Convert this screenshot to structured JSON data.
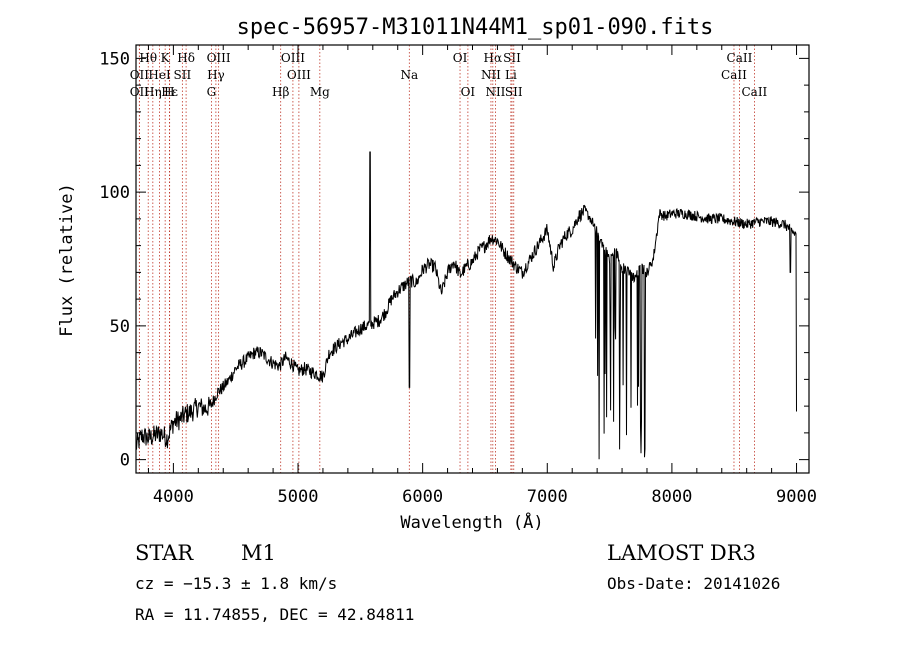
{
  "title": "spec-56957-M31011N44M1_sp01-090.fits",
  "footer": {
    "class_label": "STAR",
    "subclass": "M1",
    "survey": "LAMOST DR3",
    "cz": "cz = −15.3 ± 1.8 km/s",
    "obs_date": "Obs-Date: 20141026",
    "coords": "RA =  11.74855, DEC =  42.84811"
  },
  "chart_data": {
    "type": "line",
    "xlabel": "Wavelength (Å)",
    "ylabel": "Flux (relative)",
    "xlim": [
      3700,
      9100
    ],
    "ylim": [
      -5,
      155
    ],
    "xticks": [
      4000,
      5000,
      6000,
      7000,
      8000,
      9000
    ],
    "yticks": [
      0,
      50,
      100,
      150
    ],
    "colors": {
      "spectrum": "#000000",
      "line_markers": "#c0392b",
      "axes": "#000000"
    },
    "spectrum_anchors": [
      [
        3700,
        5
      ],
      [
        3750,
        9
      ],
      [
        3800,
        8
      ],
      [
        3850,
        9
      ],
      [
        3900,
        10
      ],
      [
        3950,
        8
      ],
      [
        4000,
        14
      ],
      [
        4050,
        15
      ],
      [
        4100,
        17
      ],
      [
        4150,
        18
      ],
      [
        4200,
        20
      ],
      [
        4250,
        19
      ],
      [
        4300,
        20
      ],
      [
        4350,
        25
      ],
      [
        4400,
        27
      ],
      [
        4450,
        30
      ],
      [
        4500,
        34
      ],
      [
        4550,
        36
      ],
      [
        4600,
        38
      ],
      [
        4650,
        40
      ],
      [
        4700,
        40
      ],
      [
        4750,
        38
      ],
      [
        4800,
        36
      ],
      [
        4850,
        35
      ],
      [
        4900,
        38
      ],
      [
        4950,
        36
      ],
      [
        5000,
        33
      ],
      [
        5050,
        34
      ],
      [
        5100,
        33
      ],
      [
        5150,
        32
      ],
      [
        5200,
        31
      ],
      [
        5250,
        40
      ],
      [
        5300,
        42
      ],
      [
        5350,
        44
      ],
      [
        5400,
        45
      ],
      [
        5450,
        47
      ],
      [
        5500,
        49
      ],
      [
        5550,
        50
      ],
      [
        5600,
        51
      ],
      [
        5650,
        52
      ],
      [
        5700,
        55
      ],
      [
        5750,
        60
      ],
      [
        5800,
        63
      ],
      [
        5850,
        65
      ],
      [
        5900,
        67
      ],
      [
        5950,
        66
      ],
      [
        6000,
        71
      ],
      [
        6050,
        73
      ],
      [
        6100,
        72
      ],
      [
        6150,
        62
      ],
      [
        6200,
        70
      ],
      [
        6250,
        74
      ],
      [
        6300,
        69
      ],
      [
        6350,
        72
      ],
      [
        6400,
        74
      ],
      [
        6450,
        78
      ],
      [
        6500,
        80
      ],
      [
        6550,
        83
      ],
      [
        6600,
        82
      ],
      [
        6650,
        78
      ],
      [
        6700,
        75
      ],
      [
        6750,
        72
      ],
      [
        6800,
        70
      ],
      [
        6850,
        74
      ],
      [
        6900,
        78
      ],
      [
        6950,
        82
      ],
      [
        7000,
        86
      ],
      [
        7050,
        72
      ],
      [
        7100,
        80
      ],
      [
        7150,
        84
      ],
      [
        7200,
        86
      ],
      [
        7250,
        91
      ],
      [
        7300,
        93
      ],
      [
        7350,
        90
      ],
      [
        7400,
        85
      ],
      [
        7450,
        80
      ],
      [
        7500,
        75
      ],
      [
        7550,
        78
      ],
      [
        7600,
        72
      ],
      [
        7650,
        70
      ],
      [
        7700,
        68
      ],
      [
        7750,
        72
      ],
      [
        7800,
        70
      ],
      [
        7850,
        75
      ],
      [
        7900,
        92
      ],
      [
        7950,
        91
      ],
      [
        8000,
        92
      ],
      [
        8100,
        92
      ],
      [
        8200,
        91
      ],
      [
        8300,
        90
      ],
      [
        8400,
        90
      ],
      [
        8500,
        89
      ],
      [
        8600,
        88
      ],
      [
        8700,
        89
      ],
      [
        8800,
        89
      ],
      [
        8900,
        88
      ],
      [
        8950,
        86
      ],
      [
        9000,
        84
      ]
    ],
    "spectrum_spikes": [
      [
        5577,
        115
      ],
      [
        5893,
        27
      ],
      [
        8950,
        70
      ],
      [
        9000,
        18
      ]
    ],
    "absorption_band": {
      "from": 7350,
      "to": 7800,
      "min": -2
    },
    "spectral_lines": [
      {
        "label": "Hθ",
        "wavelength": 3798,
        "row": 1
      },
      {
        "label": "K",
        "wavelength": 3934,
        "row": 1
      },
      {
        "label": "Hδ",
        "wavelength": 4102,
        "row": 1
      },
      {
        "label": "OIII",
        "wavelength": 4363,
        "row": 1
      },
      {
        "label": "OIII",
        "wavelength": 4959,
        "row": 1
      },
      {
        "label": "OI",
        "wavelength": 6300,
        "row": 1
      },
      {
        "label": "Hα",
        "wavelength": 6563,
        "row": 1
      },
      {
        "label": "SII",
        "wavelength": 6717,
        "row": 1
      },
      {
        "label": "CaII",
        "wavelength": 8542,
        "row": 1
      },
      {
        "label": "OII",
        "wavelength": 3727,
        "row": 2
      },
      {
        "label": "HeI",
        "wavelength": 3889,
        "row": 2
      },
      {
        "label": "SII",
        "wavelength": 4072,
        "row": 2
      },
      {
        "label": "Hγ",
        "wavelength": 4341,
        "row": 2
      },
      {
        "label": "OIII",
        "wavelength": 5007,
        "row": 2
      },
      {
        "label": "Na",
        "wavelength": 5893,
        "row": 2
      },
      {
        "label": "NII",
        "wavelength": 6548,
        "row": 2
      },
      {
        "label": "Li",
        "wavelength": 6708,
        "row": 2
      },
      {
        "label": "CaII",
        "wavelength": 8498,
        "row": 2
      },
      {
        "label": "OII",
        "wavelength": 3727,
        "row": 3
      },
      {
        "label": "Hε",
        "wavelength": 3970,
        "row": 3
      },
      {
        "label": "Hη",
        "wavelength": 3835,
        "row": 3
      },
      {
        "label": "H",
        "wavelength": 3968,
        "row": 3
      },
      {
        "label": "G",
        "wavelength": 4305,
        "row": 3
      },
      {
        "label": "Hβ",
        "wavelength": 4861,
        "row": 3
      },
      {
        "label": "Mg",
        "wavelength": 5175,
        "row": 3
      },
      {
        "label": "OI",
        "wavelength": 6363,
        "row": 3
      },
      {
        "label": "NII",
        "wavelength": 6584,
        "row": 3
      },
      {
        "label": "SII",
        "wavelength": 6731,
        "row": 3
      },
      {
        "label": "CaII",
        "wavelength": 8662,
        "row": 3
      }
    ]
  }
}
